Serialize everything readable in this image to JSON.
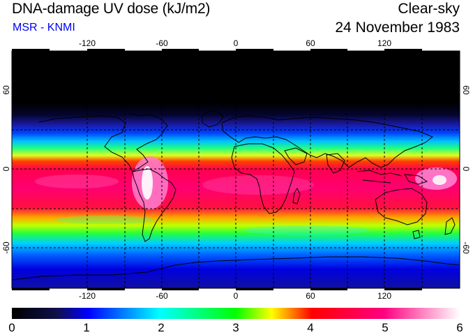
{
  "header": {
    "title": "DNA-damage UV dose (kJ/m2)",
    "subtitle": "MSR - KNMI",
    "sky_condition": "Clear-sky",
    "date": "24 November 1983"
  },
  "map": {
    "projection": "equirectangular",
    "lon_ticks": [
      "-120",
      "-60",
      "0",
      "60",
      "120"
    ],
    "lat_ticks": [
      "60",
      "0",
      "-60"
    ],
    "gridlines": "dashed, every 30 degrees",
    "coastlines": true
  },
  "colorbar": {
    "min": 0,
    "max": 6,
    "tick_labels": [
      "0",
      "1",
      "2",
      "3",
      "4",
      "5",
      "6"
    ],
    "colors": [
      "#000000",
      "#1a1a8c",
      "#0000ff",
      "#00ffff",
      "#00ff00",
      "#ffff00",
      "#ff0000",
      "#ff0090",
      "#ffffff"
    ]
  }
}
